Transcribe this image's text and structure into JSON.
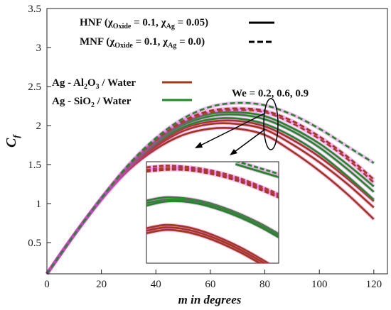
{
  "chart_data": {
    "type": "line",
    "xlabel_var": "m",
    "xlabel_rest": " in degrees",
    "ylabel_main": "C",
    "ylabel_sub": "f",
    "xlim": [
      0,
      125
    ],
    "ylim": [
      0.1,
      3.5
    ],
    "x_ticks": [
      "0",
      "20",
      "40",
      "60",
      "80",
      "100",
      "120"
    ],
    "y_ticks": [
      "0.5",
      "1",
      "1.5",
      "2",
      "2.5",
      "3",
      "3.5"
    ],
    "x": [
      0,
      10,
      20,
      30,
      40,
      50,
      60,
      70,
      80,
      90,
      100,
      110,
      120
    ],
    "legend": {
      "hnf": {
        "a": "HNF (",
        "chi1": "χ",
        "sub1": "Oxide",
        "mid": " = 0.1, ",
        "chi2": "χ",
        "sub2": "Ag",
        "end": " = 0.05)"
      },
      "mnf": {
        "a": "MNF (",
        "chi1": "χ",
        "sub1": "Oxide",
        "mid": " = 0.1, ",
        "chi2": "χ",
        "sub2": "Ag",
        "end": " = 0.0)"
      },
      "al2o3": {
        "a": "Ag - Al",
        "s1": "2",
        "b": "O",
        "s2": "3",
        "c": " / Water"
      },
      "sio2": {
        "a": "Ag - SiO",
        "s1": "2",
        "b": " / Water"
      }
    },
    "annotation": "We = 0.2, 0.6, 0.9",
    "colors": {
      "al2o3": "#a0391a",
      "sio2": "#1f8a24",
      "magenta_halo": "#e040e0"
    },
    "series": [
      {
        "fluid": "al2o3",
        "style": "solid",
        "values": [
          0.1,
          0.6,
          1.05,
          1.43,
          1.7,
          1.88,
          1.96,
          1.96,
          1.88,
          1.67,
          1.42,
          1.13,
          0.8
        ]
      },
      {
        "fluid": "al2o3",
        "style": "solid",
        "values": [
          0.1,
          0.6,
          1.06,
          1.45,
          1.73,
          1.93,
          2.02,
          2.02,
          1.95,
          1.76,
          1.53,
          1.26,
          0.95
        ]
      },
      {
        "fluid": "al2o3",
        "style": "solid",
        "values": [
          0.1,
          0.6,
          1.06,
          1.46,
          1.75,
          1.96,
          2.05,
          2.06,
          1.99,
          1.82,
          1.6,
          1.33,
          1.03
        ]
      },
      {
        "fluid": "sio2",
        "style": "solid",
        "values": [
          0.1,
          0.6,
          1.06,
          1.46,
          1.77,
          1.98,
          2.08,
          2.09,
          2.02,
          1.86,
          1.64,
          1.36,
          1.05
        ]
      },
      {
        "fluid": "sio2",
        "style": "solid",
        "values": [
          0.1,
          0.6,
          1.06,
          1.47,
          1.79,
          2.01,
          2.12,
          2.14,
          2.08,
          1.93,
          1.72,
          1.45,
          1.15
        ]
      },
      {
        "fluid": "sio2",
        "style": "solid",
        "values": [
          0.1,
          0.6,
          1.06,
          1.48,
          1.8,
          2.03,
          2.15,
          2.17,
          2.12,
          1.97,
          1.77,
          1.51,
          1.22
        ]
      },
      {
        "fluid": "al2o3",
        "style": "dashed",
        "values": [
          0.1,
          0.6,
          1.07,
          1.48,
          1.81,
          2.04,
          2.17,
          2.2,
          2.17,
          2.03,
          1.83,
          1.58,
          1.27
        ]
      },
      {
        "fluid": "al2o3",
        "style": "dashed",
        "values": [
          0.1,
          0.6,
          1.07,
          1.49,
          1.82,
          2.06,
          2.19,
          2.22,
          2.19,
          2.06,
          1.86,
          1.61,
          1.31
        ]
      },
      {
        "fluid": "sio2",
        "style": "dashed",
        "values": [
          0.1,
          0.6,
          1.07,
          1.5,
          1.84,
          2.09,
          2.24,
          2.29,
          2.26,
          2.14,
          1.96,
          1.74,
          1.52
        ]
      }
    ],
    "inset": {
      "xlim": [
        38,
        87
      ],
      "ylim": [
        0.8,
        2.05
      ],
      "curve_x": [
        38,
        45,
        52,
        59,
        66,
        73,
        80,
        87
      ],
      "groups": [
        {
          "fluid": "al2o3",
          "style": "dashed",
          "values": [
            1.98,
            2.0,
            1.99,
            1.96,
            1.91,
            1.84,
            1.75,
            1.65
          ]
        },
        {
          "fluid": "al2o3",
          "style": "dashed",
          "values": [
            1.95,
            1.97,
            1.97,
            1.94,
            1.89,
            1.82,
            1.73,
            1.63
          ]
        },
        {
          "fluid": "al2o3",
          "style": "dashed",
          "values": [
            1.93,
            1.95,
            1.95,
            1.92,
            1.87,
            1.8,
            1.71,
            1.61
          ]
        },
        {
          "fluid": "sio2",
          "style": "solid",
          "values": [
            1.57,
            1.61,
            1.6,
            1.56,
            1.49,
            1.4,
            1.29,
            1.16
          ]
        },
        {
          "fluid": "sio2",
          "style": "solid",
          "values": [
            1.54,
            1.58,
            1.58,
            1.54,
            1.47,
            1.38,
            1.27,
            1.14
          ]
        },
        {
          "fluid": "sio2",
          "style": "solid",
          "values": [
            1.51,
            1.56,
            1.56,
            1.52,
            1.45,
            1.36,
            1.25,
            1.12
          ]
        },
        {
          "fluid": "al2o3",
          "style": "solid",
          "values": [
            1.23,
            1.27,
            1.25,
            1.19,
            1.1,
            0.99,
            0.86,
            0.72
          ]
        },
        {
          "fluid": "al2o3",
          "style": "solid",
          "values": [
            1.2,
            1.24,
            1.22,
            1.16,
            1.07,
            0.96,
            0.83,
            0.69
          ]
        },
        {
          "fluid": "al2o3",
          "style": "solid",
          "values": [
            1.17,
            1.21,
            1.19,
            1.13,
            1.04,
            0.93,
            0.8,
            0.66
          ]
        }
      ],
      "top_right": [
        {
          "fluid": "sio2",
          "style": "dashed",
          "x": [
            71,
            78,
            87
          ],
          "values": [
            2.06,
            1.99,
            1.9
          ]
        },
        {
          "fluid": "sio2",
          "style": "solid",
          "x": [
            71,
            78,
            87
          ],
          "values": [
            2.02,
            1.95,
            1.86
          ]
        }
      ]
    }
  }
}
